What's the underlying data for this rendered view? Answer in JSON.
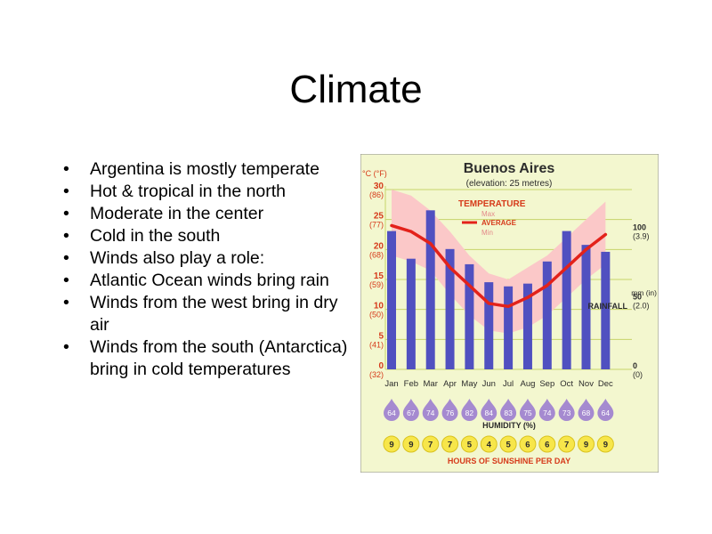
{
  "slide": {
    "title": "Climate",
    "bullets": [
      "Argentina is mostly temperate",
      "Hot & tropical in the north",
      "Moderate in the center",
      "Cold in the south",
      "Winds also play a role:",
      "Atlantic Ocean winds bring rain",
      "Winds from the west bring in dry air",
      "Winds from the south (Antarctica) bring in cold temperatures"
    ]
  },
  "chart_data": {
    "type": "line",
    "title": "Buenos Aires",
    "subtitle": "(elevation: 25 metres)",
    "categories": [
      "Jan",
      "Feb",
      "Mar",
      "Apr",
      "May",
      "Jun",
      "Jul",
      "Aug",
      "Sep",
      "Oct",
      "Nov",
      "Dec"
    ],
    "temperature": {
      "label": "TEMPERATURE",
      "legend": [
        "Max",
        "AVERAGE",
        "Min"
      ],
      "axis_label": "°C (°F)",
      "ticks": [
        {
          "c": "30",
          "f": "(86)"
        },
        {
          "c": "25",
          "f": "(77)"
        },
        {
          "c": "20",
          "f": "(68)"
        },
        {
          "c": "15",
          "f": "(59)"
        },
        {
          "c": "10",
          "f": "(50)"
        },
        {
          "c": "5",
          "f": "(41)"
        },
        {
          "c": "0",
          "f": "(32)"
        }
      ],
      "ylim": [
        0,
        30
      ],
      "average": [
        24,
        23,
        21,
        17,
        14,
        11,
        10.5,
        12,
        14,
        17,
        20,
        22.5
      ],
      "max": [
        30,
        29,
        26.5,
        23,
        19,
        16,
        15,
        17,
        19,
        22,
        25,
        28
      ],
      "min": [
        19,
        18,
        16.5,
        12.5,
        9,
        6.5,
        6,
        7,
        9,
        12,
        15,
        17.5
      ]
    },
    "rainfall": {
      "label": "RAINFALL",
      "axis_label": "mm (in)",
      "ticks": [
        {
          "mm": "100",
          "in": "(3.9)"
        },
        {
          "mm": "50",
          "in": "(2.0)"
        },
        {
          "mm": "0",
          "in": "(0)"
        }
      ],
      "ylim": [
        0,
        130
      ],
      "values": [
        100,
        80,
        115,
        87,
        76,
        63,
        60,
        62,
        78,
        100,
        90,
        85
      ]
    },
    "humidity": {
      "label": "HUMIDITY (%)",
      "values": [
        "64",
        "67",
        "74",
        "76",
        "82",
        "84",
        "83",
        "75",
        "74",
        "73",
        "68",
        "64"
      ]
    },
    "sunshine": {
      "label": "HOURS OF SUNSHINE PER DAY",
      "values": [
        "9",
        "9",
        "7",
        "7",
        "5",
        "4",
        "5",
        "6",
        "6",
        "7",
        "9",
        "9"
      ]
    },
    "colors": {
      "panel": "#f3f7cf",
      "grid": "#c7d46a",
      "band": "#fbc8c8",
      "line": "#e3221a",
      "bar": "#5050c0",
      "accent": "#d63a1a",
      "drop": "#a58ad0",
      "sun": "#f7e64a",
      "dark": "#2b2b2b"
    }
  }
}
